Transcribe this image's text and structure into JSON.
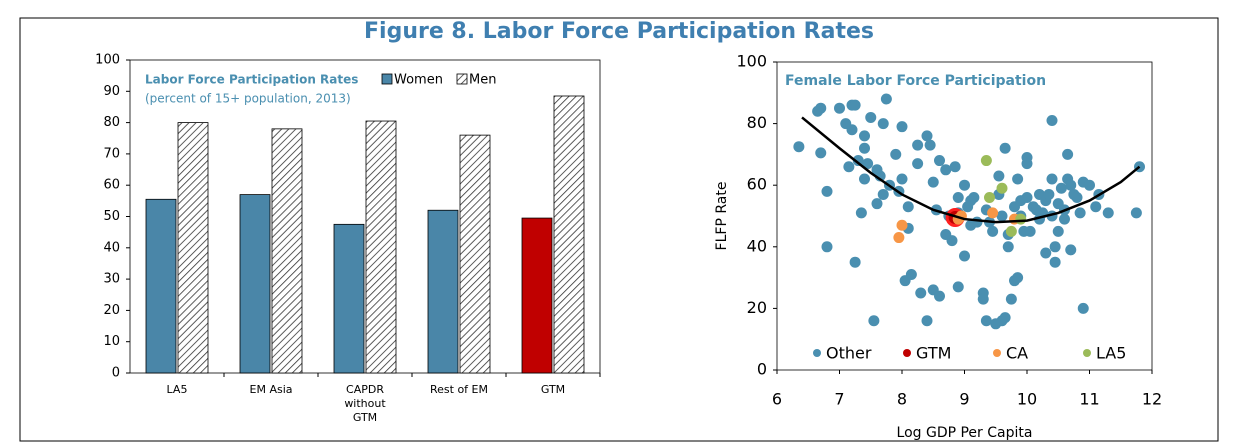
{
  "title": "Figure 8. Labor Force Participation Rates",
  "chart_data": [
    {
      "type": "bar",
      "title": "Labor Force Participation Rates",
      "subtitle": "(percent of 15+ population, 2013)",
      "categories": [
        "LA5",
        "EM Asia",
        "CAPDR without GTM",
        "Rest of EM",
        "GTM"
      ],
      "series": [
        {
          "name": "Women",
          "color": "#4a86a8",
          "colors": [
            "#4a86a8",
            "#4a86a8",
            "#4a86a8",
            "#4a86a8",
            "#c00000"
          ],
          "values": [
            55.5,
            57,
            47.5,
            52,
            49.5
          ]
        },
        {
          "name": "Men",
          "color": "#ffffff",
          "pattern": "hatch",
          "values": [
            80,
            78,
            80.5,
            76,
            88.5
          ]
        }
      ],
      "ylim": [
        0,
        100
      ],
      "yticks": [
        0,
        10,
        20,
        30,
        40,
        50,
        60,
        70,
        80,
        90,
        100
      ],
      "legend": "top-right"
    },
    {
      "type": "scatter",
      "title": "Female Labor Force Participation",
      "x_label": "Log GDP Per Capita",
      "y_label": "FLFP Rate",
      "xlim": [
        6,
        12
      ],
      "xticks": [
        6,
        7,
        8,
        9,
        10,
        11,
        12
      ],
      "ylim": [
        0,
        100
      ],
      "yticks": [
        0,
        20,
        40,
        60,
        80,
        100
      ],
      "legend": "bottom",
      "series": [
        {
          "name": "Other",
          "color": "#4a8fb0",
          "x": [
            6.35,
            6.65,
            6.7,
            6.7,
            6.8,
            6.8,
            7.0,
            7.1,
            7.15,
            7.2,
            7.2,
            7.25,
            7.25,
            7.3,
            7.35,
            7.4,
            7.4,
            7.4,
            7.45,
            7.5,
            7.55,
            7.6,
            7.6,
            7.65,
            7.7,
            7.7,
            7.75,
            7.8,
            7.9,
            7.95,
            8.0,
            8.0,
            8.05,
            8.1,
            8.1,
            8.15,
            8.25,
            8.25,
            8.3,
            8.4,
            8.4,
            8.45,
            8.5,
            8.5,
            8.55,
            8.6,
            8.6,
            8.7,
            8.7,
            8.75,
            8.8,
            8.85,
            8.9,
            8.9,
            8.9,
            9.0,
            9.0,
            9.05,
            9.1,
            9.1,
            9.15,
            9.2,
            9.3,
            9.3,
            9.35,
            9.35,
            9.4,
            9.45,
            9.5,
            9.55,
            9.55,
            9.6,
            9.6,
            9.65,
            9.65,
            9.7,
            9.7,
            9.75,
            9.8,
            9.8,
            9.85,
            9.85,
            9.9,
            9.9,
            9.95,
            10.0,
            10.0,
            10.0,
            10.05,
            10.1,
            10.15,
            10.2,
            10.2,
            10.25,
            10.3,
            10.3,
            10.35,
            10.4,
            10.4,
            10.4,
            10.45,
            10.45,
            10.5,
            10.5,
            10.55,
            10.6,
            10.6,
            10.65,
            10.65,
            10.7,
            10.7,
            10.75,
            10.8,
            10.85,
            10.9,
            10.9,
            11.0,
            11.1,
            11.15,
            11.3,
            11.75,
            11.8
          ],
          "values": [
            72.5,
            84,
            85,
            70.5,
            58,
            40,
            85,
            80,
            66,
            78,
            86,
            86,
            35,
            68,
            51,
            62,
            72,
            76,
            67,
            82,
            16,
            54,
            65,
            63,
            80,
            57,
            88,
            60,
            70,
            58,
            79,
            62,
            29,
            53,
            46,
            31,
            73,
            67,
            25,
            76,
            16,
            73,
            61,
            26,
            52,
            68,
            24,
            65,
            44,
            50,
            42,
            66,
            56,
            51,
            27,
            37,
            60,
            53,
            47,
            55,
            56,
            48,
            25,
            23,
            16,
            52,
            48,
            45,
            15,
            63,
            57,
            50,
            16,
            17,
            72,
            44,
            40,
            23,
            53,
            29,
            30,
            62,
            50,
            55,
            45,
            69,
            67,
            56,
            45,
            53,
            52,
            57,
            49,
            51,
            55,
            38,
            57,
            81,
            62,
            50,
            40,
            35,
            54,
            45,
            59,
            52,
            49,
            70,
            62,
            60,
            39,
            57,
            56,
            51,
            61,
            20,
            60,
            53,
            57,
            51,
            51,
            66
          ]
        },
        {
          "name": "GTM",
          "color": "#c00000",
          "x": [
            8.85
          ],
          "values": [
            49.5
          ]
        },
        {
          "name": "CA",
          "color": "#f79646",
          "x": [
            8.95,
            8.9,
            8.0,
            7.95,
            9.45,
            9.8
          ],
          "values": [
            50,
            49,
            47,
            43,
            51,
            49
          ]
        },
        {
          "name": "LA5",
          "color": "#9bbb59",
          "x": [
            9.35,
            9.6,
            9.4,
            9.75,
            9.9
          ],
          "values": [
            68,
            59,
            56,
            45,
            49
          ]
        }
      ],
      "trend": {
        "color": "#000000",
        "x": [
          6.4,
          7,
          7.5,
          8,
          8.5,
          9,
          9.5,
          10,
          10.5,
          11,
          11.5,
          11.8
        ],
        "values": [
          82,
          72,
          64,
          57,
          52,
          49,
          48,
          48.5,
          51,
          55,
          61,
          66
        ]
      }
    }
  ]
}
